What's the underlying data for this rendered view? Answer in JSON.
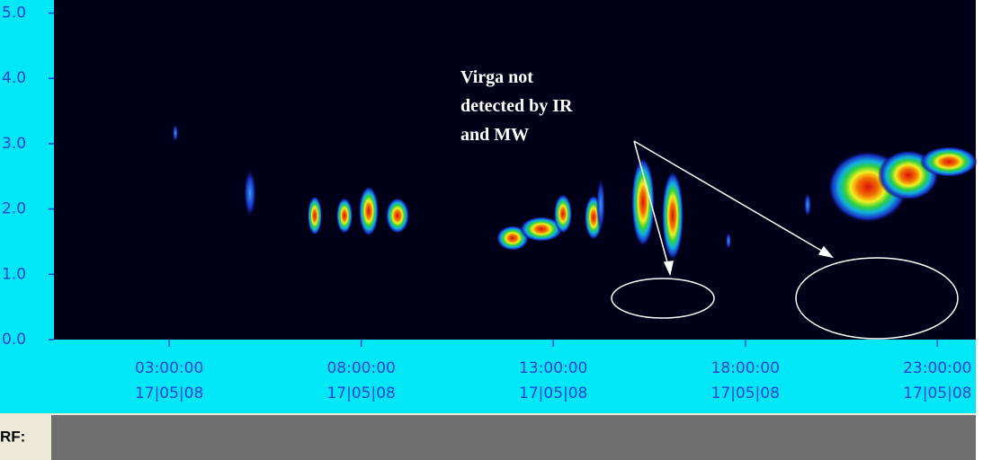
{
  "chart_data": {
    "type": "time-height",
    "ylim": [
      0,
      5.2
    ],
    "yticks": [
      {
        "value": 0,
        "label": "0.0"
      },
      {
        "value": 1,
        "label": "1.0"
      },
      {
        "value": 2,
        "label": "2.0"
      },
      {
        "value": 3,
        "label": "3.0"
      },
      {
        "value": 4,
        "label": "4.0"
      },
      {
        "value": 5,
        "label": "5.0"
      }
    ],
    "xlim": [
      0,
      24
    ],
    "xticks": [
      {
        "value": 3,
        "label": "03:00:00"
      },
      {
        "value": 8,
        "label": "08:00:00"
      },
      {
        "value": 13,
        "label": "13:00:00"
      },
      {
        "value": 18,
        "label": "18:00:00"
      },
      {
        "value": 23,
        "label": "23:00:00"
      }
    ],
    "xtick_dates": [
      "17|05|08",
      "17|05|08",
      "17|05|08",
      "17|05|08",
      "17|05|08"
    ],
    "annotation": [
      "Virga not",
      "detected by IR",
      "and MW"
    ]
  },
  "panel": {
    "label": "RF:"
  }
}
